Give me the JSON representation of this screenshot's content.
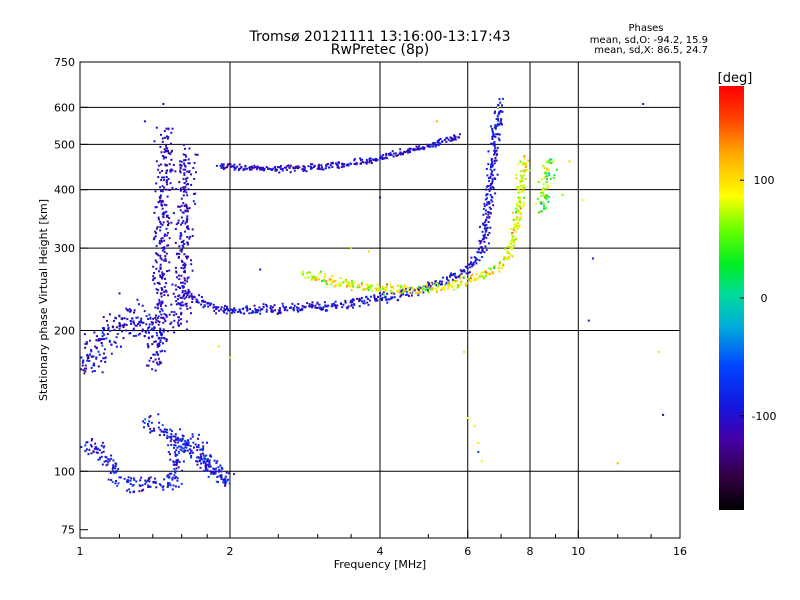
{
  "chart_data": {
    "type": "scatter",
    "title": "Tromsø 20121111 13:16:00-13:17:43",
    "subtitle": "RwPretec (8p)",
    "xlabel": "Frequency [MHz]",
    "ylabel": "Stationary phase Virtual Height [km]",
    "xscale": "log",
    "yscale": "log",
    "xlim": [
      1,
      16
    ],
    "ylim": [
      72,
      750
    ],
    "xticks": [
      {
        "v": 1,
        "label": "1"
      },
      {
        "v": 2,
        "label": "2"
      },
      {
        "v": 4,
        "label": "4"
      },
      {
        "v": 6,
        "label": "6"
      },
      {
        "v": 8,
        "label": "8"
      },
      {
        "v": 10,
        "label": "10"
      },
      {
        "v": 16,
        "label": "16"
      }
    ],
    "yticks": [
      {
        "v": 75,
        "label": "75"
      },
      {
        "v": 100,
        "label": "100"
      },
      {
        "v": 200,
        "label": "200"
      },
      {
        "v": 300,
        "label": "300"
      },
      {
        "v": 400,
        "label": "400"
      },
      {
        "v": 500,
        "label": "500"
      },
      {
        "v": 600,
        "label": "600"
      },
      {
        "v": 750,
        "label": "750"
      }
    ],
    "grid_x": [
      2,
      4,
      6,
      8,
      10
    ],
    "grid_y": [
      100,
      200,
      300,
      400,
      500,
      600
    ],
    "colorbar": {
      "label": "[deg]",
      "range": [
        -180,
        180
      ],
      "ticks": [
        {
          "v": 100,
          "label": "100"
        },
        {
          "v": 0,
          "label": "0"
        },
        {
          "v": -100,
          "label": "-100"
        }
      ]
    },
    "stats": {
      "title": "Phases",
      "line_o": "mean, sd,O: -94.2, 15.9",
      "line_x": "mean, sd,X:  86.5, 24.7"
    },
    "traces": [
      {
        "name": "low-frequency E-region echoes",
        "phase": -100,
        "phase_sd": 20,
        "spread": 0.035,
        "points": [
          [
            1.0,
            165
          ],
          [
            1.05,
            175
          ],
          [
            1.1,
            185
          ],
          [
            1.15,
            195
          ],
          [
            1.2,
            200
          ],
          [
            1.25,
            210
          ],
          [
            1.3,
            215
          ],
          [
            1.35,
            210
          ],
          [
            1.4,
            200
          ],
          [
            1.45,
            190
          ]
        ]
      },
      {
        "name": "vertical spread near 1.45 MHz",
        "phase": -105,
        "phase_sd": 12,
        "spread": 0.02,
        "points": [
          [
            1.43,
            165
          ],
          [
            1.45,
            200
          ],
          [
            1.45,
            250
          ],
          [
            1.46,
            300
          ],
          [
            1.47,
            350
          ],
          [
            1.47,
            400
          ],
          [
            1.48,
            450
          ],
          [
            1.48,
            500
          ],
          [
            1.49,
            540
          ]
        ]
      },
      {
        "name": "vertical spread near 1.6 MHz",
        "phase": -105,
        "phase_sd": 12,
        "spread": 0.02,
        "points": [
          [
            1.58,
            200
          ],
          [
            1.6,
            230
          ],
          [
            1.6,
            260
          ],
          [
            1.62,
            300
          ],
          [
            1.62,
            350
          ],
          [
            1.63,
            400
          ],
          [
            1.64,
            450
          ],
          [
            1.65,
            490
          ]
        ]
      },
      {
        "name": "O-mode F trace",
        "phase": -95,
        "phase_sd": 14,
        "spread": 0.012,
        "points": [
          [
            1.6,
            245
          ],
          [
            1.8,
            226
          ],
          [
            2.0,
            220
          ],
          [
            2.5,
            221
          ],
          [
            3.0,
            224
          ],
          [
            3.5,
            229
          ],
          [
            4.0,
            234
          ],
          [
            4.5,
            240
          ],
          [
            5.0,
            248
          ],
          [
            5.5,
            258
          ],
          [
            6.0,
            268
          ],
          [
            6.3,
            285
          ],
          [
            6.5,
            320
          ],
          [
            6.6,
            370
          ],
          [
            6.7,
            430
          ],
          [
            6.8,
            500
          ],
          [
            6.9,
            570
          ],
          [
            7.0,
            620
          ]
        ]
      },
      {
        "name": "X-mode F trace",
        "phase": 90,
        "phase_sd": 25,
        "spread": 0.012,
        "points": [
          [
            2.8,
            265
          ],
          [
            3.2,
            255
          ],
          [
            3.6,
            248
          ],
          [
            4.2,
            244
          ],
          [
            5.0,
            245
          ],
          [
            5.8,
            252
          ],
          [
            6.5,
            262
          ],
          [
            7.0,
            275
          ],
          [
            7.3,
            300
          ],
          [
            7.5,
            330
          ],
          [
            7.6,
            370
          ],
          [
            7.7,
            420
          ],
          [
            7.8,
            470
          ]
        ]
      },
      {
        "name": "upper multi-hop trace",
        "phase": -100,
        "phase_sd": 15,
        "spread": 0.008,
        "points": [
          [
            1.9,
            450
          ],
          [
            2.2,
            445
          ],
          [
            2.6,
            443
          ],
          [
            3.0,
            447
          ],
          [
            3.5,
            455
          ],
          [
            4.0,
            468
          ],
          [
            4.5,
            482
          ],
          [
            5.0,
            495
          ],
          [
            5.5,
            510
          ],
          [
            5.8,
            525
          ]
        ]
      },
      {
        "name": "right-hand X cluster",
        "phase": 60,
        "phase_sd": 35,
        "spread": 0.015,
        "points": [
          [
            8.4,
            360
          ],
          [
            8.6,
            400
          ],
          [
            8.7,
            440
          ],
          [
            8.8,
            470
          ]
        ]
      },
      {
        "name": "lower scattered echoes",
        "phase": -90,
        "phase_sd": 20,
        "spread": 0.02,
        "points": [
          [
            1.0,
            110
          ],
          [
            1.05,
            115
          ],
          [
            1.25,
            93
          ],
          [
            1.55,
            95
          ],
          [
            1.6,
            118
          ],
          [
            1.7,
            115
          ],
          [
            1.9,
            96
          ],
          [
            2.0,
            96
          ],
          [
            1.35,
            130
          ]
        ]
      }
    ],
    "scatter": [
      [
        5.9,
        180,
        100
      ],
      [
        6.0,
        130,
        90
      ],
      [
        6.2,
        125,
        95
      ],
      [
        6.3,
        115,
        100
      ],
      [
        6.3,
        110,
        -60
      ],
      [
        6.4,
        105,
        80
      ],
      [
        10.2,
        380,
        90
      ],
      [
        10.5,
        210,
        -90
      ],
      [
        10.7,
        285,
        -90
      ],
      [
        12.0,
        104,
        120
      ],
      [
        13.5,
        610,
        -100
      ],
      [
        14.5,
        180,
        100
      ],
      [
        14.8,
        132,
        -140
      ],
      [
        4.0,
        385,
        -110
      ],
      [
        3.8,
        295,
        100
      ],
      [
        3.5,
        300,
        110
      ],
      [
        1.9,
        185,
        100
      ],
      [
        2.0,
        175,
        80
      ],
      [
        1.2,
        240,
        -110
      ],
      [
        1.35,
        560,
        -100
      ],
      [
        1.47,
        610,
        -110
      ],
      [
        9.6,
        460,
        110
      ],
      [
        9.3,
        390,
        60
      ],
      [
        6.9,
        600,
        90
      ],
      [
        5.2,
        560,
        120
      ],
      [
        2.3,
        270,
        -100
      ]
    ]
  }
}
